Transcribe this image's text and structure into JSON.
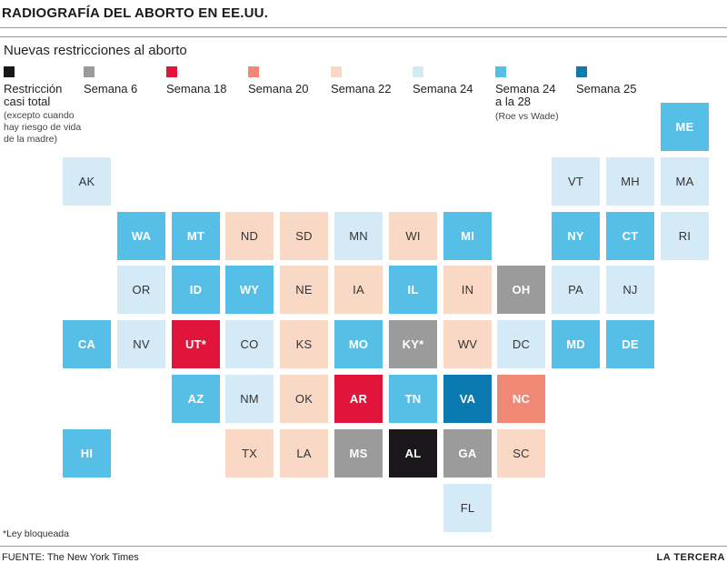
{
  "header": {
    "title": "RADIOGRAFÍA DEL ABORTO EN EE.UU."
  },
  "chart_data": {
    "type": "heatmap",
    "subtitle": "Nuevas restricciones al aborto",
    "legend": [
      {
        "key": "total",
        "label": "Restricción casi total",
        "note": "(excepto cuando hay riesgo de vida de la madre)",
        "color": "#1a171b",
        "text_color": "#ffffff",
        "bold": true
      },
      {
        "key": "w6",
        "label": "Semana 6",
        "note": "",
        "color": "#9b9b9b",
        "text_color": "#ffffff",
        "bold": true
      },
      {
        "key": "w18",
        "label": "Semana 18",
        "note": "",
        "color": "#e1153c",
        "text_color": "#ffffff",
        "bold": true
      },
      {
        "key": "w20",
        "label": "Semana 20",
        "note": "",
        "color": "#ef8874",
        "text_color": "#ffffff",
        "bold": true
      },
      {
        "key": "w22",
        "label": "Semana 22",
        "note": "",
        "color": "#fad8c6",
        "text_color": "#333333",
        "bold": false
      },
      {
        "key": "w24",
        "label": "Semana 24",
        "note": "",
        "color": "#d5eaf7",
        "text_color": "#333333",
        "bold": false
      },
      {
        "key": "w2428",
        "label": "Semana 24 a la 28",
        "note": "(Roe vs Wade)",
        "color": "#56bfe8",
        "text_color": "#ffffff",
        "bold": true
      },
      {
        "key": "w25",
        "label": "Semana 25",
        "note": "",
        "color": "#0a7ab0",
        "text_color": "#ffffff",
        "bold": true
      }
    ],
    "states": [
      {
        "abbr": "ME",
        "row": 0,
        "col": 11,
        "cat": "w2428"
      },
      {
        "abbr": "AK",
        "row": 1,
        "col": 0,
        "cat": "w24"
      },
      {
        "abbr": "VT",
        "row": 1,
        "col": 9,
        "cat": "w24"
      },
      {
        "abbr": "MH",
        "row": 1,
        "col": 10,
        "cat": "w24"
      },
      {
        "abbr": "MA",
        "row": 1,
        "col": 11,
        "cat": "w24"
      },
      {
        "abbr": "WA",
        "row": 2,
        "col": 1,
        "cat": "w2428"
      },
      {
        "abbr": "MT",
        "row": 2,
        "col": 2,
        "cat": "w2428"
      },
      {
        "abbr": "ND",
        "row": 2,
        "col": 3,
        "cat": "w22"
      },
      {
        "abbr": "SD",
        "row": 2,
        "col": 4,
        "cat": "w22"
      },
      {
        "abbr": "MN",
        "row": 2,
        "col": 5,
        "cat": "w24"
      },
      {
        "abbr": "WI",
        "row": 2,
        "col": 6,
        "cat": "w22"
      },
      {
        "abbr": "MI",
        "row": 2,
        "col": 7,
        "cat": "w2428"
      },
      {
        "abbr": "NY",
        "row": 2,
        "col": 9,
        "cat": "w2428"
      },
      {
        "abbr": "CT",
        "row": 2,
        "col": 10,
        "cat": "w2428"
      },
      {
        "abbr": "RI",
        "row": 2,
        "col": 11,
        "cat": "w24"
      },
      {
        "abbr": "OR",
        "row": 3,
        "col": 1,
        "cat": "w24"
      },
      {
        "abbr": "ID",
        "row": 3,
        "col": 2,
        "cat": "w2428"
      },
      {
        "abbr": "WY",
        "row": 3,
        "col": 3,
        "cat": "w2428"
      },
      {
        "abbr": "NE",
        "row": 3,
        "col": 4,
        "cat": "w22"
      },
      {
        "abbr": "IA",
        "row": 3,
        "col": 5,
        "cat": "w22"
      },
      {
        "abbr": "IL",
        "row": 3,
        "col": 6,
        "cat": "w2428"
      },
      {
        "abbr": "IN",
        "row": 3,
        "col": 7,
        "cat": "w22"
      },
      {
        "abbr": "OH",
        "row": 3,
        "col": 8,
        "cat": "w6"
      },
      {
        "abbr": "PA",
        "row": 3,
        "col": 9,
        "cat": "w24"
      },
      {
        "abbr": "NJ",
        "row": 3,
        "col": 10,
        "cat": "w24"
      },
      {
        "abbr": "CA",
        "row": 4,
        "col": 0,
        "cat": "w2428"
      },
      {
        "abbr": "NV",
        "row": 4,
        "col": 1,
        "cat": "w24"
      },
      {
        "abbr": "UT*",
        "row": 4,
        "col": 2,
        "cat": "w18"
      },
      {
        "abbr": "CO",
        "row": 4,
        "col": 3,
        "cat": "w24"
      },
      {
        "abbr": "KS",
        "row": 4,
        "col": 4,
        "cat": "w22"
      },
      {
        "abbr": "MO",
        "row": 4,
        "col": 5,
        "cat": "w2428"
      },
      {
        "abbr": "KY*",
        "row": 4,
        "col": 6,
        "cat": "w6"
      },
      {
        "abbr": "WV",
        "row": 4,
        "col": 7,
        "cat": "w22"
      },
      {
        "abbr": "DC",
        "row": 4,
        "col": 8,
        "cat": "w24"
      },
      {
        "abbr": "MD",
        "row": 4,
        "col": 9,
        "cat": "w2428"
      },
      {
        "abbr": "DE",
        "row": 4,
        "col": 10,
        "cat": "w2428"
      },
      {
        "abbr": "AZ",
        "row": 5,
        "col": 2,
        "cat": "w2428"
      },
      {
        "abbr": "NM",
        "row": 5,
        "col": 3,
        "cat": "w24"
      },
      {
        "abbr": "OK",
        "row": 5,
        "col": 4,
        "cat": "w22"
      },
      {
        "abbr": "AR",
        "row": 5,
        "col": 5,
        "cat": "w18"
      },
      {
        "abbr": "TN",
        "row": 5,
        "col": 6,
        "cat": "w2428"
      },
      {
        "abbr": "VA",
        "row": 5,
        "col": 7,
        "cat": "w25"
      },
      {
        "abbr": "NC",
        "row": 5,
        "col": 8,
        "cat": "w20"
      },
      {
        "abbr": "HI",
        "row": 6,
        "col": 0,
        "cat": "w2428"
      },
      {
        "abbr": "TX",
        "row": 6,
        "col": 3,
        "cat": "w22"
      },
      {
        "abbr": "LA",
        "row": 6,
        "col": 4,
        "cat": "w22"
      },
      {
        "abbr": "MS",
        "row": 6,
        "col": 5,
        "cat": "w6"
      },
      {
        "abbr": "AL",
        "row": 6,
        "col": 6,
        "cat": "total"
      },
      {
        "abbr": "GA",
        "row": 6,
        "col": 7,
        "cat": "w6"
      },
      {
        "abbr": "SC",
        "row": 6,
        "col": 8,
        "cat": "w22"
      },
      {
        "abbr": "FL",
        "row": 7,
        "col": 7,
        "cat": "w24"
      }
    ],
    "footnote": "*Ley bloqueada"
  },
  "footer": {
    "source": "FUENTE: The New York Times",
    "brand": "LA TERCERA"
  }
}
